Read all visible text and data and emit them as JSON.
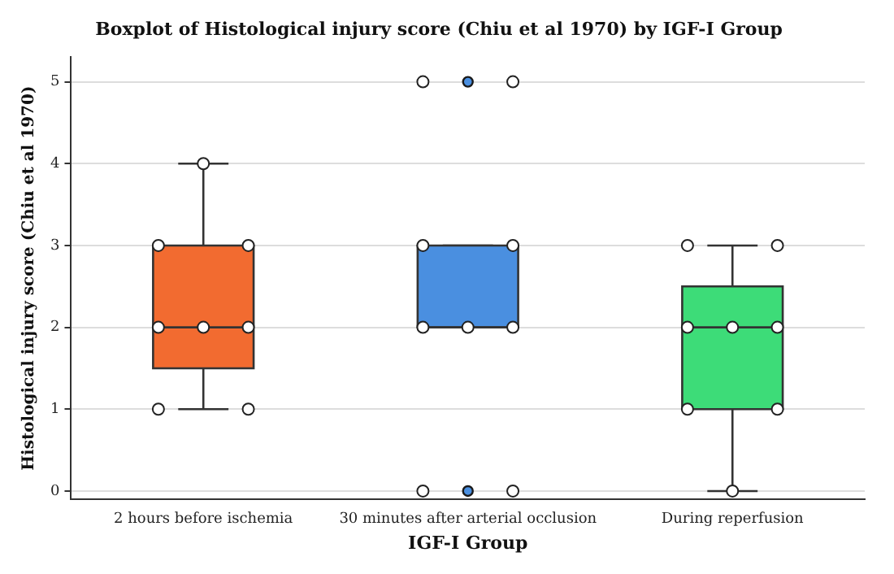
{
  "chart_data": {
    "type": "box",
    "title": "Boxplot of Histological injury score (Chiu et al 1970) by IGF-I Group",
    "xlabel": "IGF-I Group",
    "ylabel": "Histological injury score (Chiu et al 1970)",
    "categories": [
      "2 hours before ischemia",
      "30 minutes after arterial occlusion",
      "During reperfusion"
    ],
    "ylim": [
      -0.1,
      5.3
    ],
    "yticks": [
      0,
      1,
      2,
      3,
      4,
      5
    ],
    "grid": "y",
    "marker": "circle",
    "series": [
      {
        "type": "box",
        "colors": [
          "#f26b30",
          "#4a8fe0",
          "#3ddc78"
        ],
        "boxes": [
          {
            "low": 1,
            "q1": 1.5,
            "median": 2,
            "q3": 3,
            "high": 4
          },
          {
            "low": 2,
            "q1": 2,
            "median": 2,
            "q3": 3,
            "high": 3,
            "outliers": [
              0,
              5
            ]
          },
          {
            "low": 0,
            "q1": 1,
            "median": 2,
            "q3": 2.5,
            "high": 3
          }
        ]
      },
      {
        "type": "scatter",
        "color": "#ffffff",
        "x": [
          "2 hours before ischemia",
          "2 hours before ischemia",
          "2 hours before ischemia",
          "2 hours before ischemia",
          "2 hours before ischemia",
          "2 hours before ischemia",
          "2 hours before ischemia",
          "2 hours before ischemia",
          "30 minutes after arterial occlusion",
          "30 minutes after arterial occlusion",
          "30 minutes after arterial occlusion",
          "30 minutes after arterial occlusion",
          "30 minutes after arterial occlusion",
          "30 minutes after arterial occlusion",
          "30 minutes after arterial occlusion",
          "30 minutes after arterial occlusion",
          "30 minutes after arterial occlusion",
          "During reperfusion",
          "During reperfusion",
          "During reperfusion",
          "During reperfusion",
          "During reperfusion",
          "During reperfusion",
          "During reperfusion",
          "During reperfusion"
        ],
        "values": [
          4,
          3,
          3,
          2,
          2,
          2,
          1,
          1,
          5,
          5,
          3,
          3,
          2,
          2,
          2,
          0,
          0,
          3,
          3,
          2,
          2,
          2,
          1,
          1,
          0
        ]
      }
    ]
  }
}
